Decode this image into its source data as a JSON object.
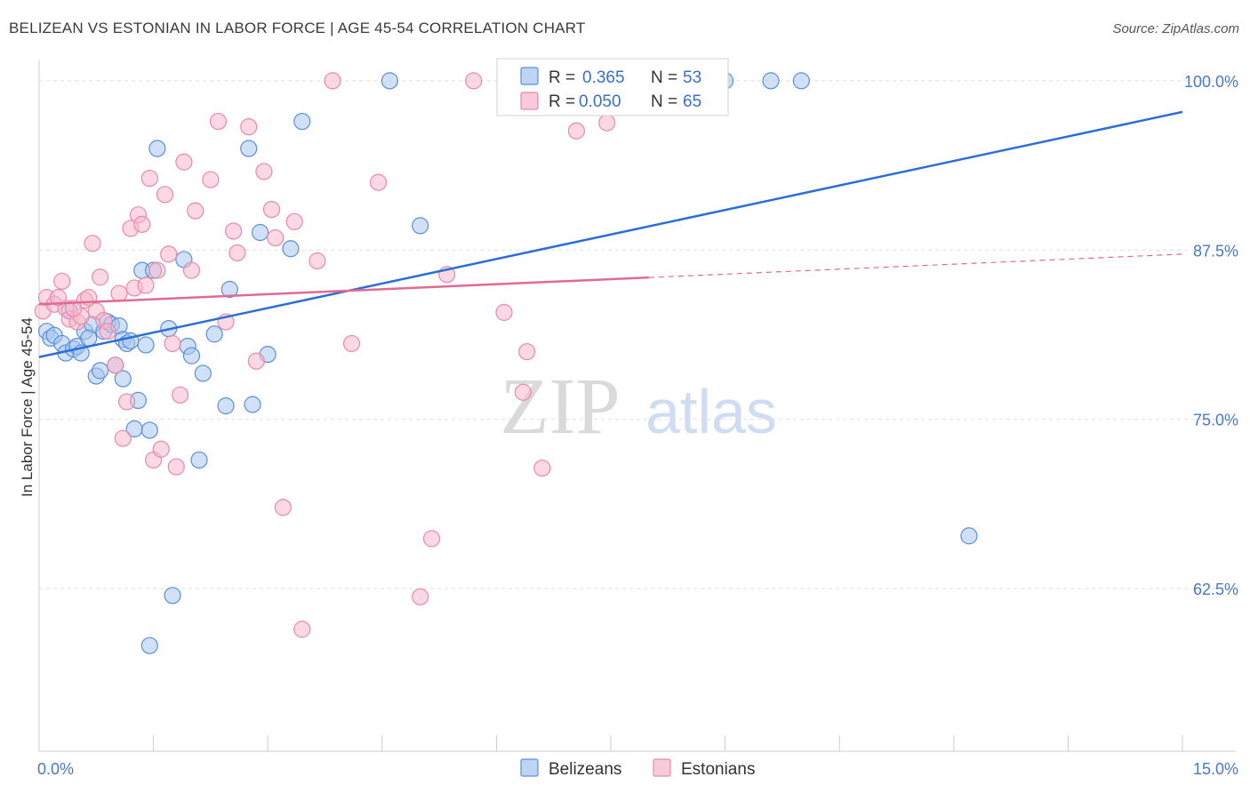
{
  "header": {
    "title": "BELIZEAN VS ESTONIAN IN LABOR FORCE | AGE 45-54 CORRELATION CHART",
    "source": "Source: ZipAtlas.com"
  },
  "watermark": {
    "zip": "ZIP",
    "atlas": "atlas"
  },
  "colors": {
    "belizeans_fill": "#a9c6f0",
    "belizeans_stroke": "#5a8fd8",
    "belizeans_line": "#2b6fd6",
    "estonians_fill": "#f7b8cc",
    "estonians_stroke": "#e88aa8",
    "estonians_line": "#e06a95",
    "tick_text": "#4a78c8",
    "grid": "#dddddd"
  },
  "chart_data": {
    "type": "scatter",
    "title": "BELIZEAN VS ESTONIAN IN LABOR FORCE | AGE 45-54 CORRELATION CHART",
    "xlabel": "",
    "ylabel": "In Labor Force | Age 45-54",
    "xlim": [
      0,
      15
    ],
    "ylim": [
      50.5,
      101.5
    ],
    "x_tick_labels": [
      {
        "value": 0,
        "label": "0.0%"
      },
      {
        "value": 15,
        "label": "15.0%"
      }
    ],
    "y_ticks": [
      {
        "value": 100,
        "label": "100.0%"
      },
      {
        "value": 87.5,
        "label": "87.5%"
      },
      {
        "value": 75,
        "label": "75.0%"
      },
      {
        "value": 62.5,
        "label": "62.5%"
      }
    ],
    "grid": true,
    "legend_position": "top-center",
    "stats": [
      {
        "r_label": "R =",
        "r": "0.365",
        "n_label": "N =",
        "n": "53"
      },
      {
        "r_label": "R =",
        "r": "0.050",
        "n_label": "N =",
        "n": "65"
      }
    ],
    "series": [
      {
        "name": "Belizeans",
        "trend": {
          "x": [
            0,
            15
          ],
          "y": [
            79.6,
            97.7
          ],
          "dashed_from": null
        },
        "points": [
          [
            0.1,
            81.5
          ],
          [
            0.15,
            81.0
          ],
          [
            0.2,
            81.2
          ],
          [
            0.3,
            80.6
          ],
          [
            0.35,
            79.9
          ],
          [
            0.45,
            80.2
          ],
          [
            0.4,
            83.0
          ],
          [
            0.5,
            80.4
          ],
          [
            0.55,
            79.9
          ],
          [
            0.6,
            81.5
          ],
          [
            0.7,
            82.0
          ],
          [
            0.75,
            78.2
          ],
          [
            0.8,
            78.6
          ],
          [
            0.85,
            81.5
          ],
          [
            0.9,
            82.2
          ],
          [
            0.95,
            82.0
          ],
          [
            1.0,
            79.0
          ],
          [
            1.05,
            81.9
          ],
          [
            1.1,
            80.9
          ],
          [
            1.1,
            78.0
          ],
          [
            1.15,
            80.6
          ],
          [
            1.2,
            80.8
          ],
          [
            1.25,
            74.3
          ],
          [
            1.3,
            76.4
          ],
          [
            1.35,
            86.0
          ],
          [
            1.4,
            80.5
          ],
          [
            1.45,
            74.2
          ],
          [
            1.5,
            86.0
          ],
          [
            1.55,
            95.0
          ],
          [
            1.7,
            81.7
          ],
          [
            1.75,
            62.0
          ],
          [
            1.9,
            86.8
          ],
          [
            1.95,
            80.4
          ],
          [
            2.0,
            79.7
          ],
          [
            2.1,
            72.0
          ],
          [
            2.15,
            78.4
          ],
          [
            2.3,
            81.3
          ],
          [
            2.45,
            76.0
          ],
          [
            2.5,
            84.6
          ],
          [
            2.75,
            95.0
          ],
          [
            2.8,
            76.1
          ],
          [
            2.9,
            88.8
          ],
          [
            3.0,
            79.8
          ],
          [
            3.3,
            87.6
          ],
          [
            3.45,
            97.0
          ],
          [
            0.65,
            81.0
          ],
          [
            1.45,
            58.3
          ],
          [
            4.6,
            100.0
          ],
          [
            5.0,
            89.3
          ],
          [
            9.0,
            100.0
          ],
          [
            10.0,
            100.0
          ],
          [
            12.2,
            66.4
          ],
          [
            9.6,
            100.0
          ]
        ]
      },
      {
        "name": "Estonians",
        "trend": {
          "x": [
            0,
            15
          ],
          "y": [
            83.5,
            87.2
          ],
          "dashed_from": 8.0
        },
        "points": [
          [
            0.05,
            83.0
          ],
          [
            0.1,
            84.0
          ],
          [
            0.2,
            83.5
          ],
          [
            0.3,
            85.2
          ],
          [
            0.35,
            83.2
          ],
          [
            0.4,
            82.4
          ],
          [
            0.5,
            82.2
          ],
          [
            0.55,
            82.6
          ],
          [
            0.6,
            83.8
          ],
          [
            0.65,
            84.0
          ],
          [
            0.7,
            88.0
          ],
          [
            0.75,
            83.0
          ],
          [
            0.8,
            85.5
          ],
          [
            0.85,
            82.3
          ],
          [
            0.9,
            81.5
          ],
          [
            1.0,
            79.0
          ],
          [
            1.05,
            84.3
          ],
          [
            1.1,
            73.6
          ],
          [
            1.15,
            76.3
          ],
          [
            1.2,
            89.1
          ],
          [
            1.25,
            84.7
          ],
          [
            1.3,
            90.1
          ],
          [
            1.35,
            89.4
          ],
          [
            1.4,
            84.9
          ],
          [
            1.45,
            92.8
          ],
          [
            1.5,
            72.0
          ],
          [
            1.55,
            86.0
          ],
          [
            1.6,
            72.8
          ],
          [
            1.65,
            91.6
          ],
          [
            1.7,
            87.2
          ],
          [
            1.75,
            80.6
          ],
          [
            1.8,
            71.5
          ],
          [
            1.85,
            76.8
          ],
          [
            1.9,
            94.0
          ],
          [
            2.0,
            86.0
          ],
          [
            2.05,
            90.4
          ],
          [
            2.25,
            92.7
          ],
          [
            2.35,
            97.0
          ],
          [
            2.45,
            82.2
          ],
          [
            2.55,
            88.9
          ],
          [
            2.6,
            87.3
          ],
          [
            2.75,
            96.6
          ],
          [
            2.85,
            79.3
          ],
          [
            2.95,
            93.3
          ],
          [
            3.05,
            90.5
          ],
          [
            3.1,
            88.4
          ],
          [
            3.2,
            68.5
          ],
          [
            3.35,
            89.6
          ],
          [
            3.45,
            59.5
          ],
          [
            3.65,
            86.7
          ],
          [
            3.85,
            100.0
          ],
          [
            4.1,
            80.6
          ],
          [
            4.45,
            92.5
          ],
          [
            5.0,
            61.9
          ],
          [
            5.15,
            66.2
          ],
          [
            5.35,
            85.7
          ],
          [
            5.7,
            100.0
          ],
          [
            6.1,
            82.9
          ],
          [
            6.35,
            77.0
          ],
          [
            6.4,
            80.0
          ],
          [
            6.6,
            71.4
          ],
          [
            7.05,
            96.3
          ],
          [
            7.45,
            96.9
          ],
          [
            0.25,
            84.0
          ],
          [
            0.45,
            83.2
          ]
        ]
      }
    ]
  },
  "legend_bottom": [
    "Belizeans",
    "Estonians"
  ]
}
